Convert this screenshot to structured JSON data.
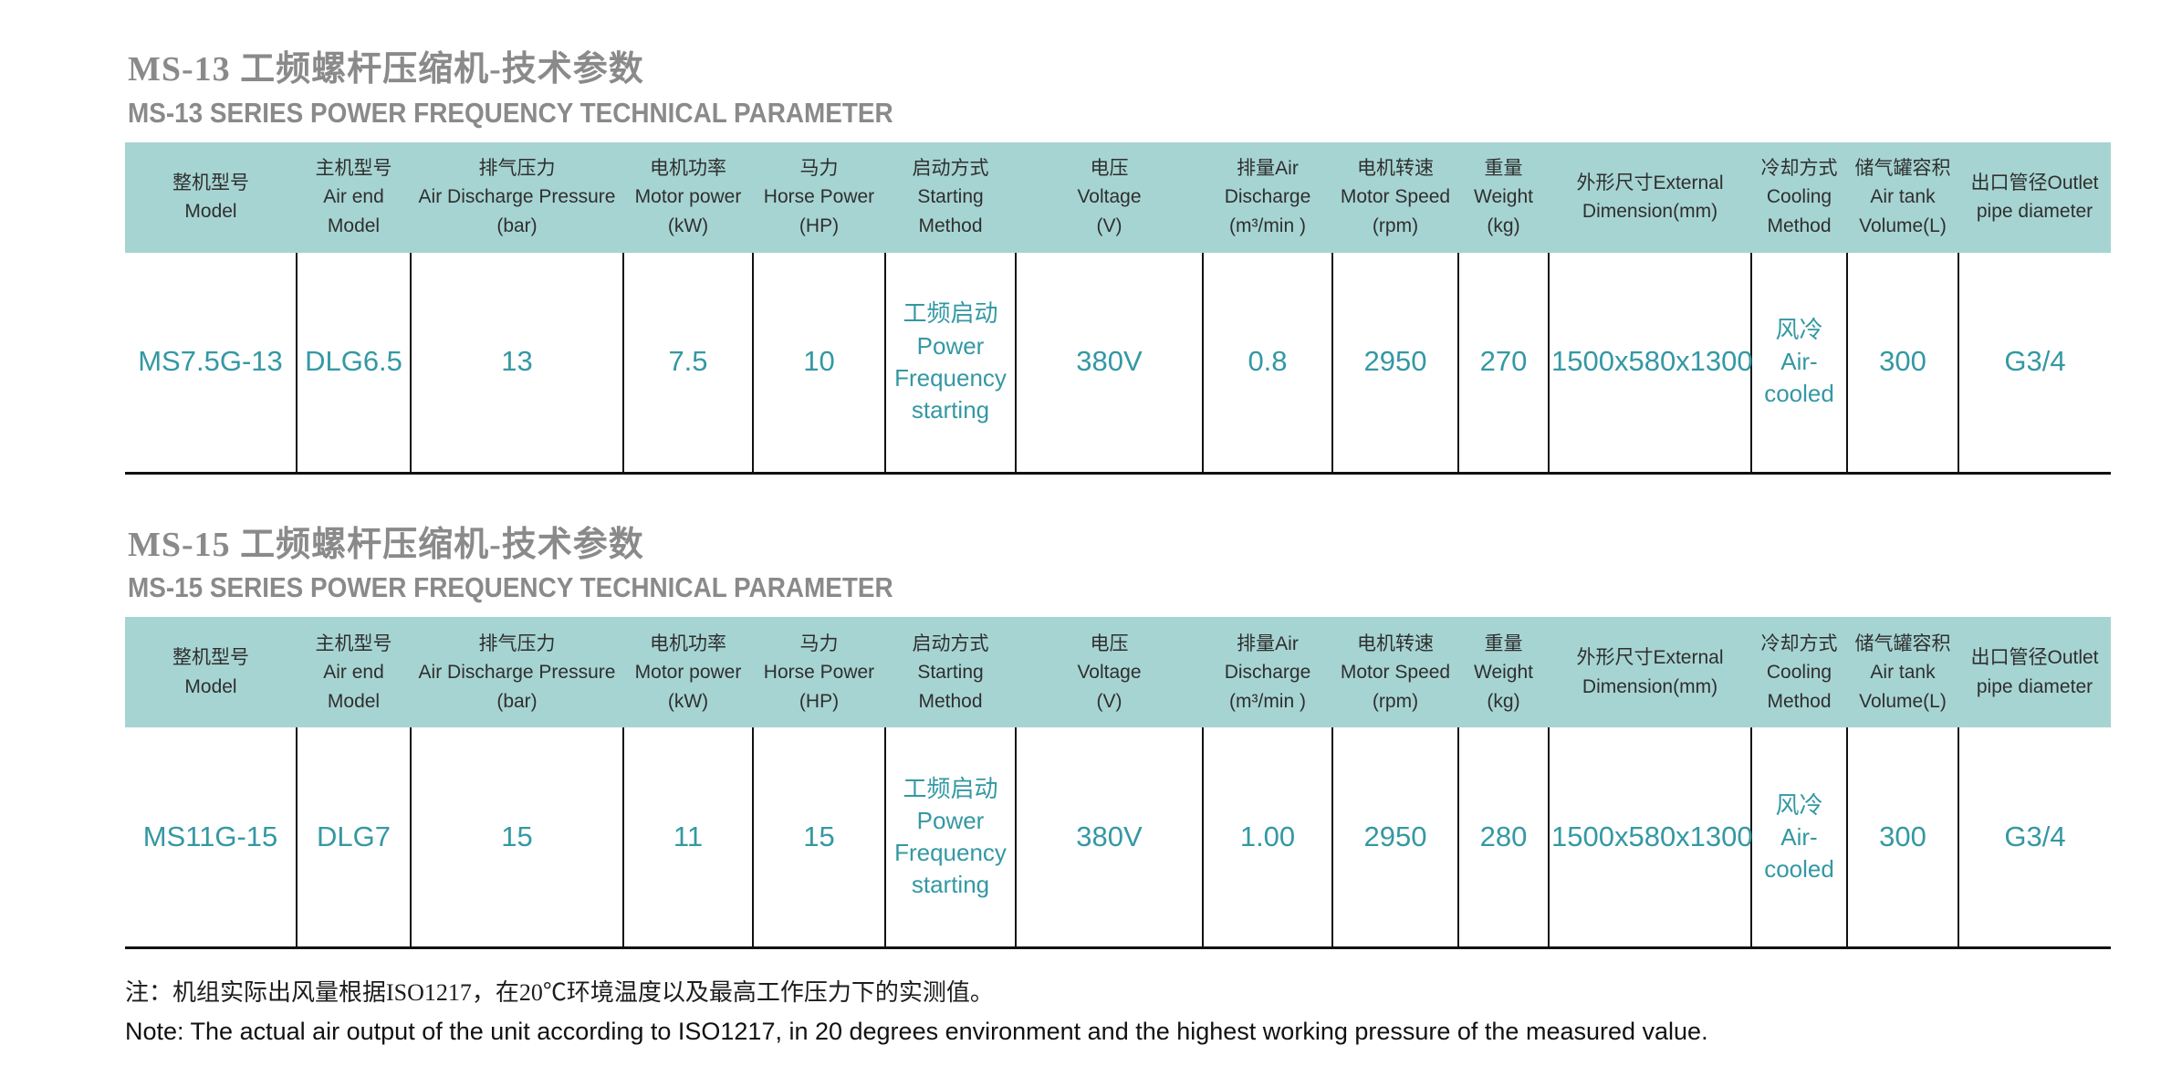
{
  "colors": {
    "header_band_teal": "#a6d4d2",
    "data_text_teal": "#3498a3",
    "title_gray": "#8a8a8a",
    "border_black": "#111111"
  },
  "tables": [
    {
      "title_zh": "MS-13 工频螺杆压缩机-技术参数",
      "title_en": "MS-13 SERIES POWER FREQUENCY TECHNICAL PARAMETER",
      "headers": [
        "整机型号\nModel",
        "主机型号\nAir end\nModel",
        "排气压力\nAir Discharge Pressure\n(bar)",
        "电机功率\nMotor power\n(kW)",
        "马力\nHorse Power\n(HP)",
        "启动方式\nStarting\nMethod",
        "电压\nVoltage\n(V)",
        "排量Air\nDischarge\n(m³/min )",
        "电机转速\nMotor Speed\n(rpm)",
        "重量\nWeight\n(kg)",
        "外形尺寸External\nDimension(mm)",
        "冷却方式\nCooling\nMethod",
        "储气罐容积\nAir tank\nVolume(L)",
        "出口管径Outlet\npipe diameter"
      ],
      "row": [
        "MS7.5G-13",
        "DLG6.5",
        "13",
        "7.5",
        "10",
        "工频启动\nPower\nFrequency\nstarting",
        "380V",
        "0.8",
        "2950",
        "270",
        "1500x580x1300",
        "风冷\nAir-\ncooled",
        "300",
        "G3/4"
      ]
    },
    {
      "title_zh": "MS-15 工频螺杆压缩机-技术参数",
      "title_en": "MS-15 SERIES POWER FREQUENCY TECHNICAL PARAMETER",
      "headers": [
        "整机型号\nModel",
        "主机型号\nAir end\nModel",
        "排气压力\nAir Discharge Pressure\n(bar)",
        "电机功率\nMotor power\n(kW)",
        "马力\nHorse Power\n(HP)",
        "启动方式\nStarting\nMethod",
        "电压\nVoltage\n(V)",
        "排量Air\nDischarge\n(m³/min )",
        "电机转速\nMotor Speed\n(rpm)",
        "重量\nWeight\n(kg)",
        "外形尺寸External\nDimension(mm)",
        "冷却方式\nCooling\nMethod",
        "储气罐容积\nAir tank\nVolume(L)",
        "出口管径Outlet\npipe diameter"
      ],
      "row": [
        "MS11G-15",
        "DLG7",
        "15",
        "11",
        "15",
        "工频启动\nPower\nFrequency\nstarting",
        "380V",
        "1.00",
        "2950",
        "280",
        "1500x580x1300",
        "风冷\nAir-\ncooled",
        "300",
        "G3/4"
      ]
    }
  ],
  "footnotes": {
    "zh": "注：机组实际出风量根据ISO1217，在20℃环境温度以及最高工作压力下的实测值。",
    "en": "Note: The actual air output of the unit according to ISO1217, in 20 degrees environment and the highest working pressure of the measured value."
  }
}
